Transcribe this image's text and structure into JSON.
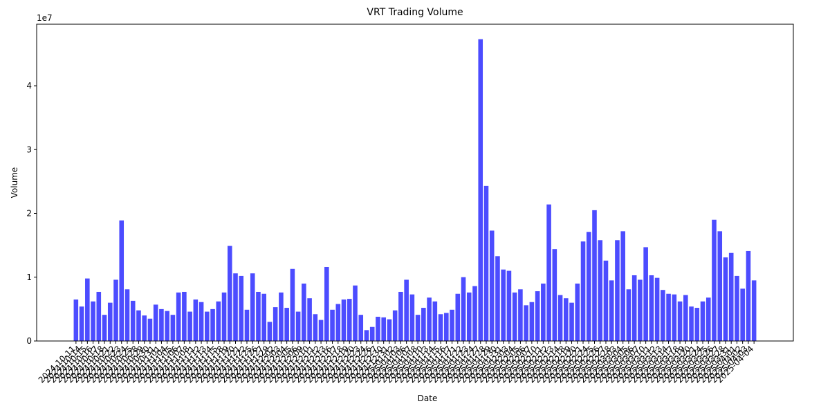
{
  "chart_data": {
    "type": "bar",
    "title": "VRT Trading Volume",
    "x_label": "Date",
    "y_label": "Volume",
    "y_offset_label": "1e7",
    "color": "#4c4cff",
    "categories": [
      "2024-10-11",
      "2024-10-14",
      "2024-10-15",
      "2024-10-16",
      "2024-10-17",
      "2024-10-18",
      "2024-10-21",
      "2024-10-22",
      "2024-10-23",
      "2024-10-24",
      "2024-10-25",
      "2024-10-28",
      "2024-10-29",
      "2024-10-30",
      "2024-10-31",
      "2024-11-01",
      "2024-11-04",
      "2024-11-05",
      "2024-11-06",
      "2024-11-07",
      "2024-11-08",
      "2024-11-11",
      "2024-11-12",
      "2024-11-13",
      "2024-11-14",
      "2024-11-15",
      "2024-11-18",
      "2024-11-19",
      "2024-11-20",
      "2024-11-21",
      "2024-11-22",
      "2024-11-25",
      "2024-11-26",
      "2024-11-27",
      "2024-11-29",
      "2024-12-02",
      "2024-12-03",
      "2024-12-04",
      "2024-12-05",
      "2024-12-06",
      "2024-12-09",
      "2024-12-10",
      "2024-12-11",
      "2024-12-12",
      "2024-12-13",
      "2024-12-16",
      "2024-12-17",
      "2024-12-18",
      "2024-12-19",
      "2024-12-20",
      "2024-12-23",
      "2024-12-24",
      "2024-12-26",
      "2024-12-27",
      "2024-12-30",
      "2024-12-31",
      "2025-01-02",
      "2025-01-03",
      "2025-01-06",
      "2025-01-07",
      "2025-01-08",
      "2025-01-10",
      "2025-01-13",
      "2025-01-14",
      "2025-01-15",
      "2025-01-16",
      "2025-01-17",
      "2025-01-21",
      "2025-01-22",
      "2025-01-23",
      "2025-01-24",
      "2025-01-27",
      "2025-01-28",
      "2025-01-29",
      "2025-01-30",
      "2025-01-31",
      "2025-02-03",
      "2025-02-04",
      "2025-02-05",
      "2025-02-06",
      "2025-02-07",
      "2025-02-10",
      "2025-02-11",
      "2025-02-12",
      "2025-02-13",
      "2025-02-14",
      "2025-02-18",
      "2025-02-19",
      "2025-02-20",
      "2025-02-21",
      "2025-02-24",
      "2025-02-25",
      "2025-02-26",
      "2025-02-27",
      "2025-02-28",
      "2025-03-03",
      "2025-03-04",
      "2025-03-05",
      "2025-03-06",
      "2025-03-07",
      "2025-03-10",
      "2025-03-11",
      "2025-03-12",
      "2025-03-13",
      "2025-03-14",
      "2025-03-17",
      "2025-03-18",
      "2025-03-19",
      "2025-03-20",
      "2025-03-21",
      "2025-03-24",
      "2025-03-25",
      "2025-03-26",
      "2025-03-27",
      "2025-03-28",
      "2025-03-31",
      "2025-04-01",
      "2025-04-02",
      "2025-04-03",
      "2025-04-04"
    ],
    "values": [
      6500000,
      5400000,
      9800000,
      6200000,
      7700000,
      4100000,
      6000000,
      9600000,
      18900000,
      8100000,
      6300000,
      4800000,
      4000000,
      3500000,
      5700000,
      5000000,
      4700000,
      4100000,
      7600000,
      7700000,
      4600000,
      6500000,
      6100000,
      4600000,
      5000000,
      6200000,
      7600000,
      14900000,
      10600000,
      10200000,
      4900000,
      10600000,
      7700000,
      7400000,
      3000000,
      5300000,
      7600000,
      5200000,
      11300000,
      4600000,
      9000000,
      6700000,
      4200000,
      3300000,
      11600000,
      4900000,
      5800000,
      6500000,
      6600000,
      8700000,
      4100000,
      1700000,
      2200000,
      3800000,
      3700000,
      3400000,
      4800000,
      7700000,
      9600000,
      7300000,
      4100000,
      5200000,
      6800000,
      6200000,
      4200000,
      4400000,
      4900000,
      7400000,
      10000000,
      7600000,
      8600000,
      47300000,
      24300000,
      17300000,
      13300000,
      11200000,
      11000000,
      7600000,
      8100000,
      5600000,
      6100000,
      7800000,
      9000000,
      21400000,
      14400000,
      7200000,
      6700000,
      6000000,
      9000000,
      15600000,
      17100000,
      20500000,
      15800000,
      12600000,
      9500000,
      15800000,
      17200000,
      8100000,
      10300000,
      9600000,
      14700000,
      10300000,
      9900000,
      8000000,
      7400000,
      7300000,
      6200000,
      7200000,
      5400000,
      5200000,
      6200000,
      6800000,
      19000000,
      17200000,
      13100000,
      13800000,
      10200000,
      8200000,
      14100000,
      9500000
    ],
    "ylim": [
      0,
      49650000
    ],
    "yticks": [
      0,
      {
        "value": 10000000,
        "label": "1"
      },
      {
        "value": 20000000,
        "label": "2"
      },
      {
        "value": 30000000,
        "label": "3"
      },
      {
        "value": 40000000,
        "label": "4"
      }
    ]
  }
}
